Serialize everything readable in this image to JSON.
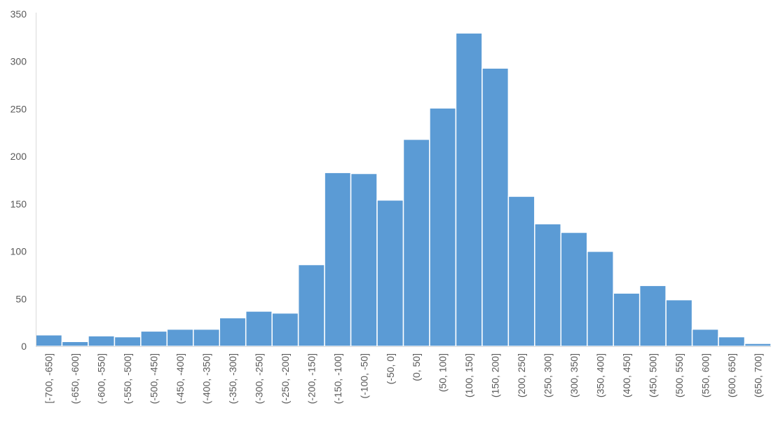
{
  "chart_data": {
    "type": "bar",
    "title": "",
    "xlabel": "",
    "ylabel": "",
    "ylim": [
      0,
      350
    ],
    "yticks": [
      0,
      50,
      100,
      150,
      200,
      250,
      300,
      350
    ],
    "grid": false,
    "legend": "none",
    "bar_color": "#5b9bd5",
    "axis_color": "#d9d9d9",
    "label_color": "#595959",
    "categories": [
      "[-700, -650]",
      "(-650, -600]",
      "(-600, -550]",
      "(-550, -500]",
      "(-500, -450]",
      "(-450, -400]",
      "(-400, -350]",
      "(-350, -300]",
      "(-300, -250]",
      "(-250, -200]",
      "(-200, -150]",
      "(-150, -100]",
      "(-100, -50]",
      "(-50, 0]",
      "(0, 50]",
      "(50, 100]",
      "(100, 150]",
      "(150, 200]",
      "(200, 250]",
      "(250, 300]",
      "(300, 350]",
      "(350, 400]",
      "(400, 450]",
      "(450, 500]",
      "(500, 550]",
      "(550, 600]",
      "(600, 650]",
      "(650, 700]"
    ],
    "values": [
      12,
      5,
      11,
      10,
      16,
      18,
      18,
      30,
      37,
      35,
      86,
      183,
      182,
      154,
      218,
      251,
      330,
      293,
      158,
      129,
      120,
      100,
      56,
      64,
      49,
      18,
      10,
      3
    ]
  }
}
